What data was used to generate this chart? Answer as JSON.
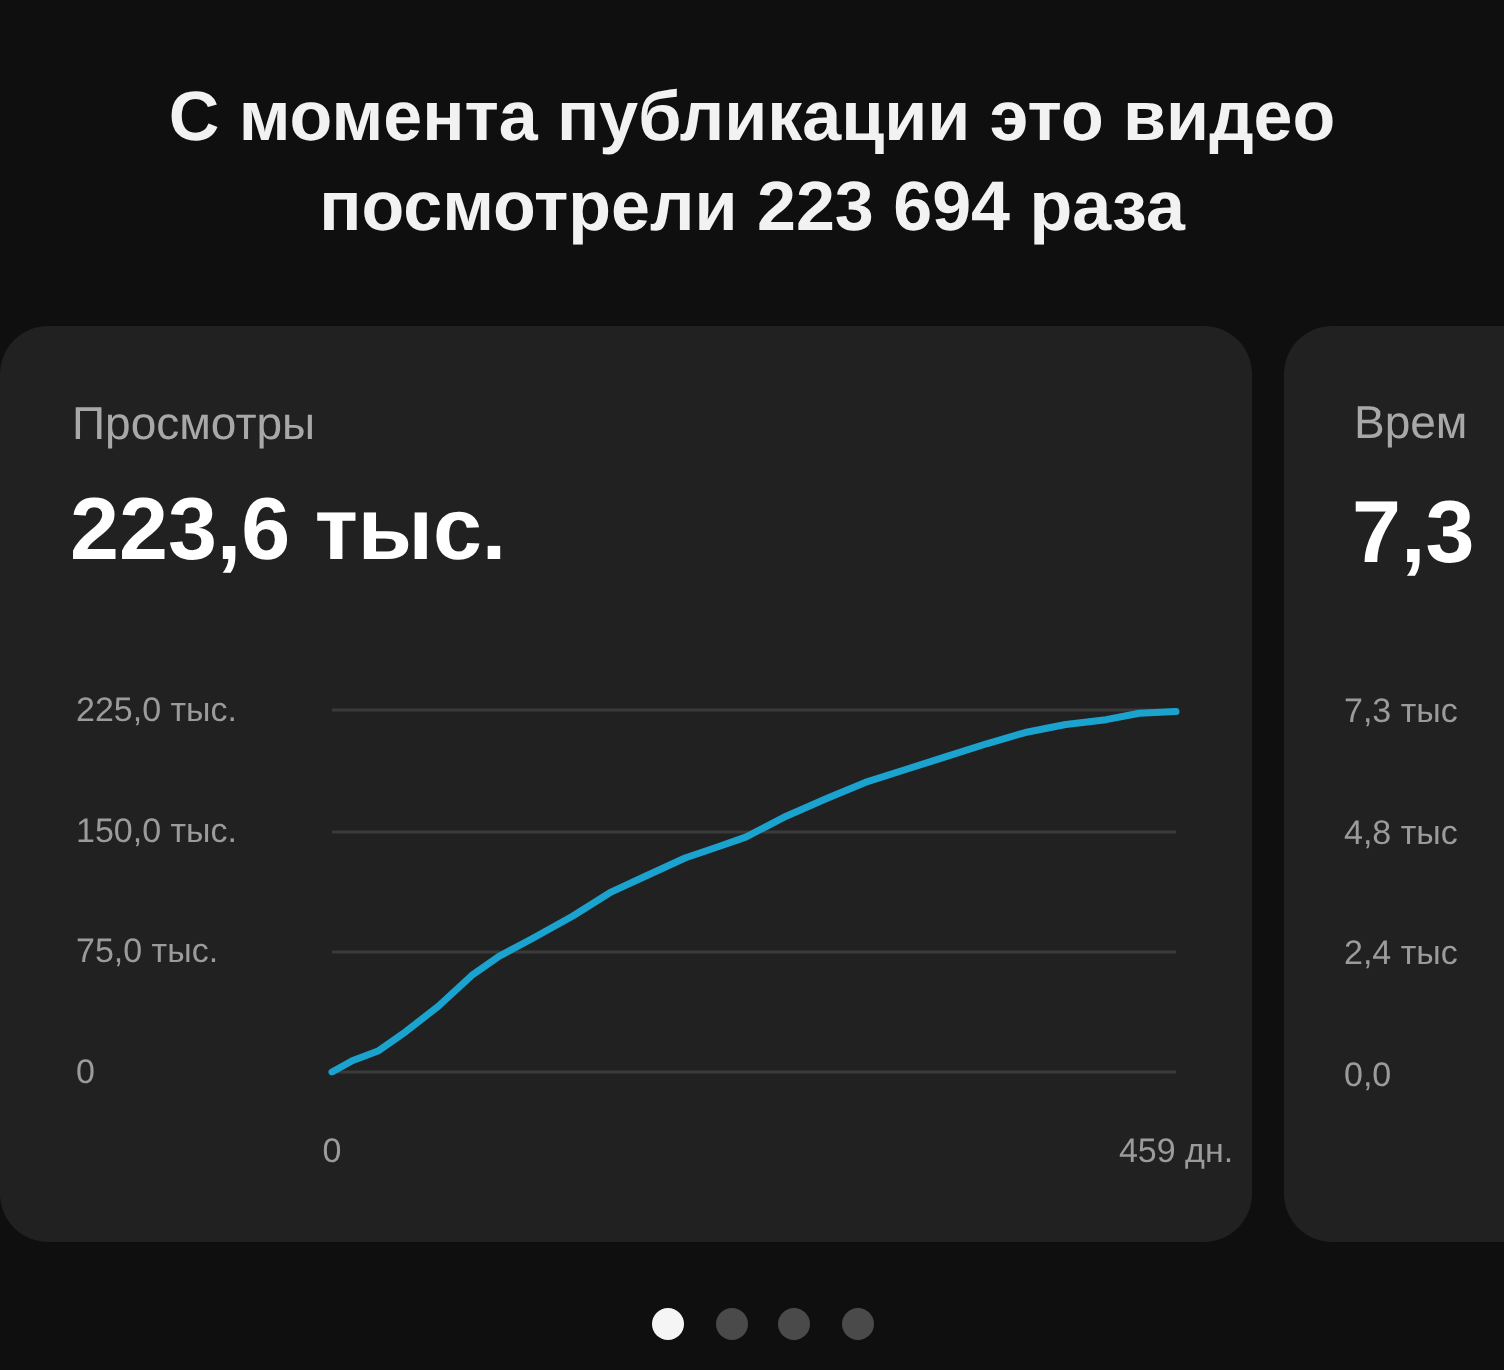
{
  "chart_data": [
    {
      "type": "line",
      "title": "Просмотры",
      "subtitle": "223,6 тыс.",
      "annotations": [
        "С момента публикации это видео посмотрели 223 694 раза"
      ],
      "x": [
        0,
        11,
        25,
        40,
        58,
        76,
        91,
        109,
        131,
        152,
        171,
        192,
        210,
        225,
        247,
        269,
        290,
        312,
        334,
        356,
        377,
        399,
        421,
        439,
        459
      ],
      "values": [
        0,
        7,
        13,
        25,
        41,
        60,
        72,
        83,
        97,
        112,
        122,
        133,
        140,
        146,
        159,
        170,
        180,
        188,
        196,
        204,
        211,
        216,
        219,
        223,
        224
      ],
      "color": "#1aa3cf",
      "xlim": [
        0,
        459
      ],
      "xticks": [
        0,
        {
          "value": 459,
          "label": "459 дн."
        }
      ],
      "ylim": [
        0,
        225
      ],
      "yticks": [
        0,
        {
          "value": 75,
          "label": "75,0 тыс."
        },
        {
          "value": 150,
          "label": "150,0 тыс."
        },
        {
          "value": 225,
          "label": "225,0 тыс."
        }
      ],
      "grid": "y",
      "line_style": "solid"
    },
    {
      "type": "other",
      "title": "Врем",
      "subtitle": "7,3",
      "annotations": [
        "7,3 тыс",
        "4,8 тыс",
        "2,4 тыс",
        "0,0"
      ]
    }
  ]
}
